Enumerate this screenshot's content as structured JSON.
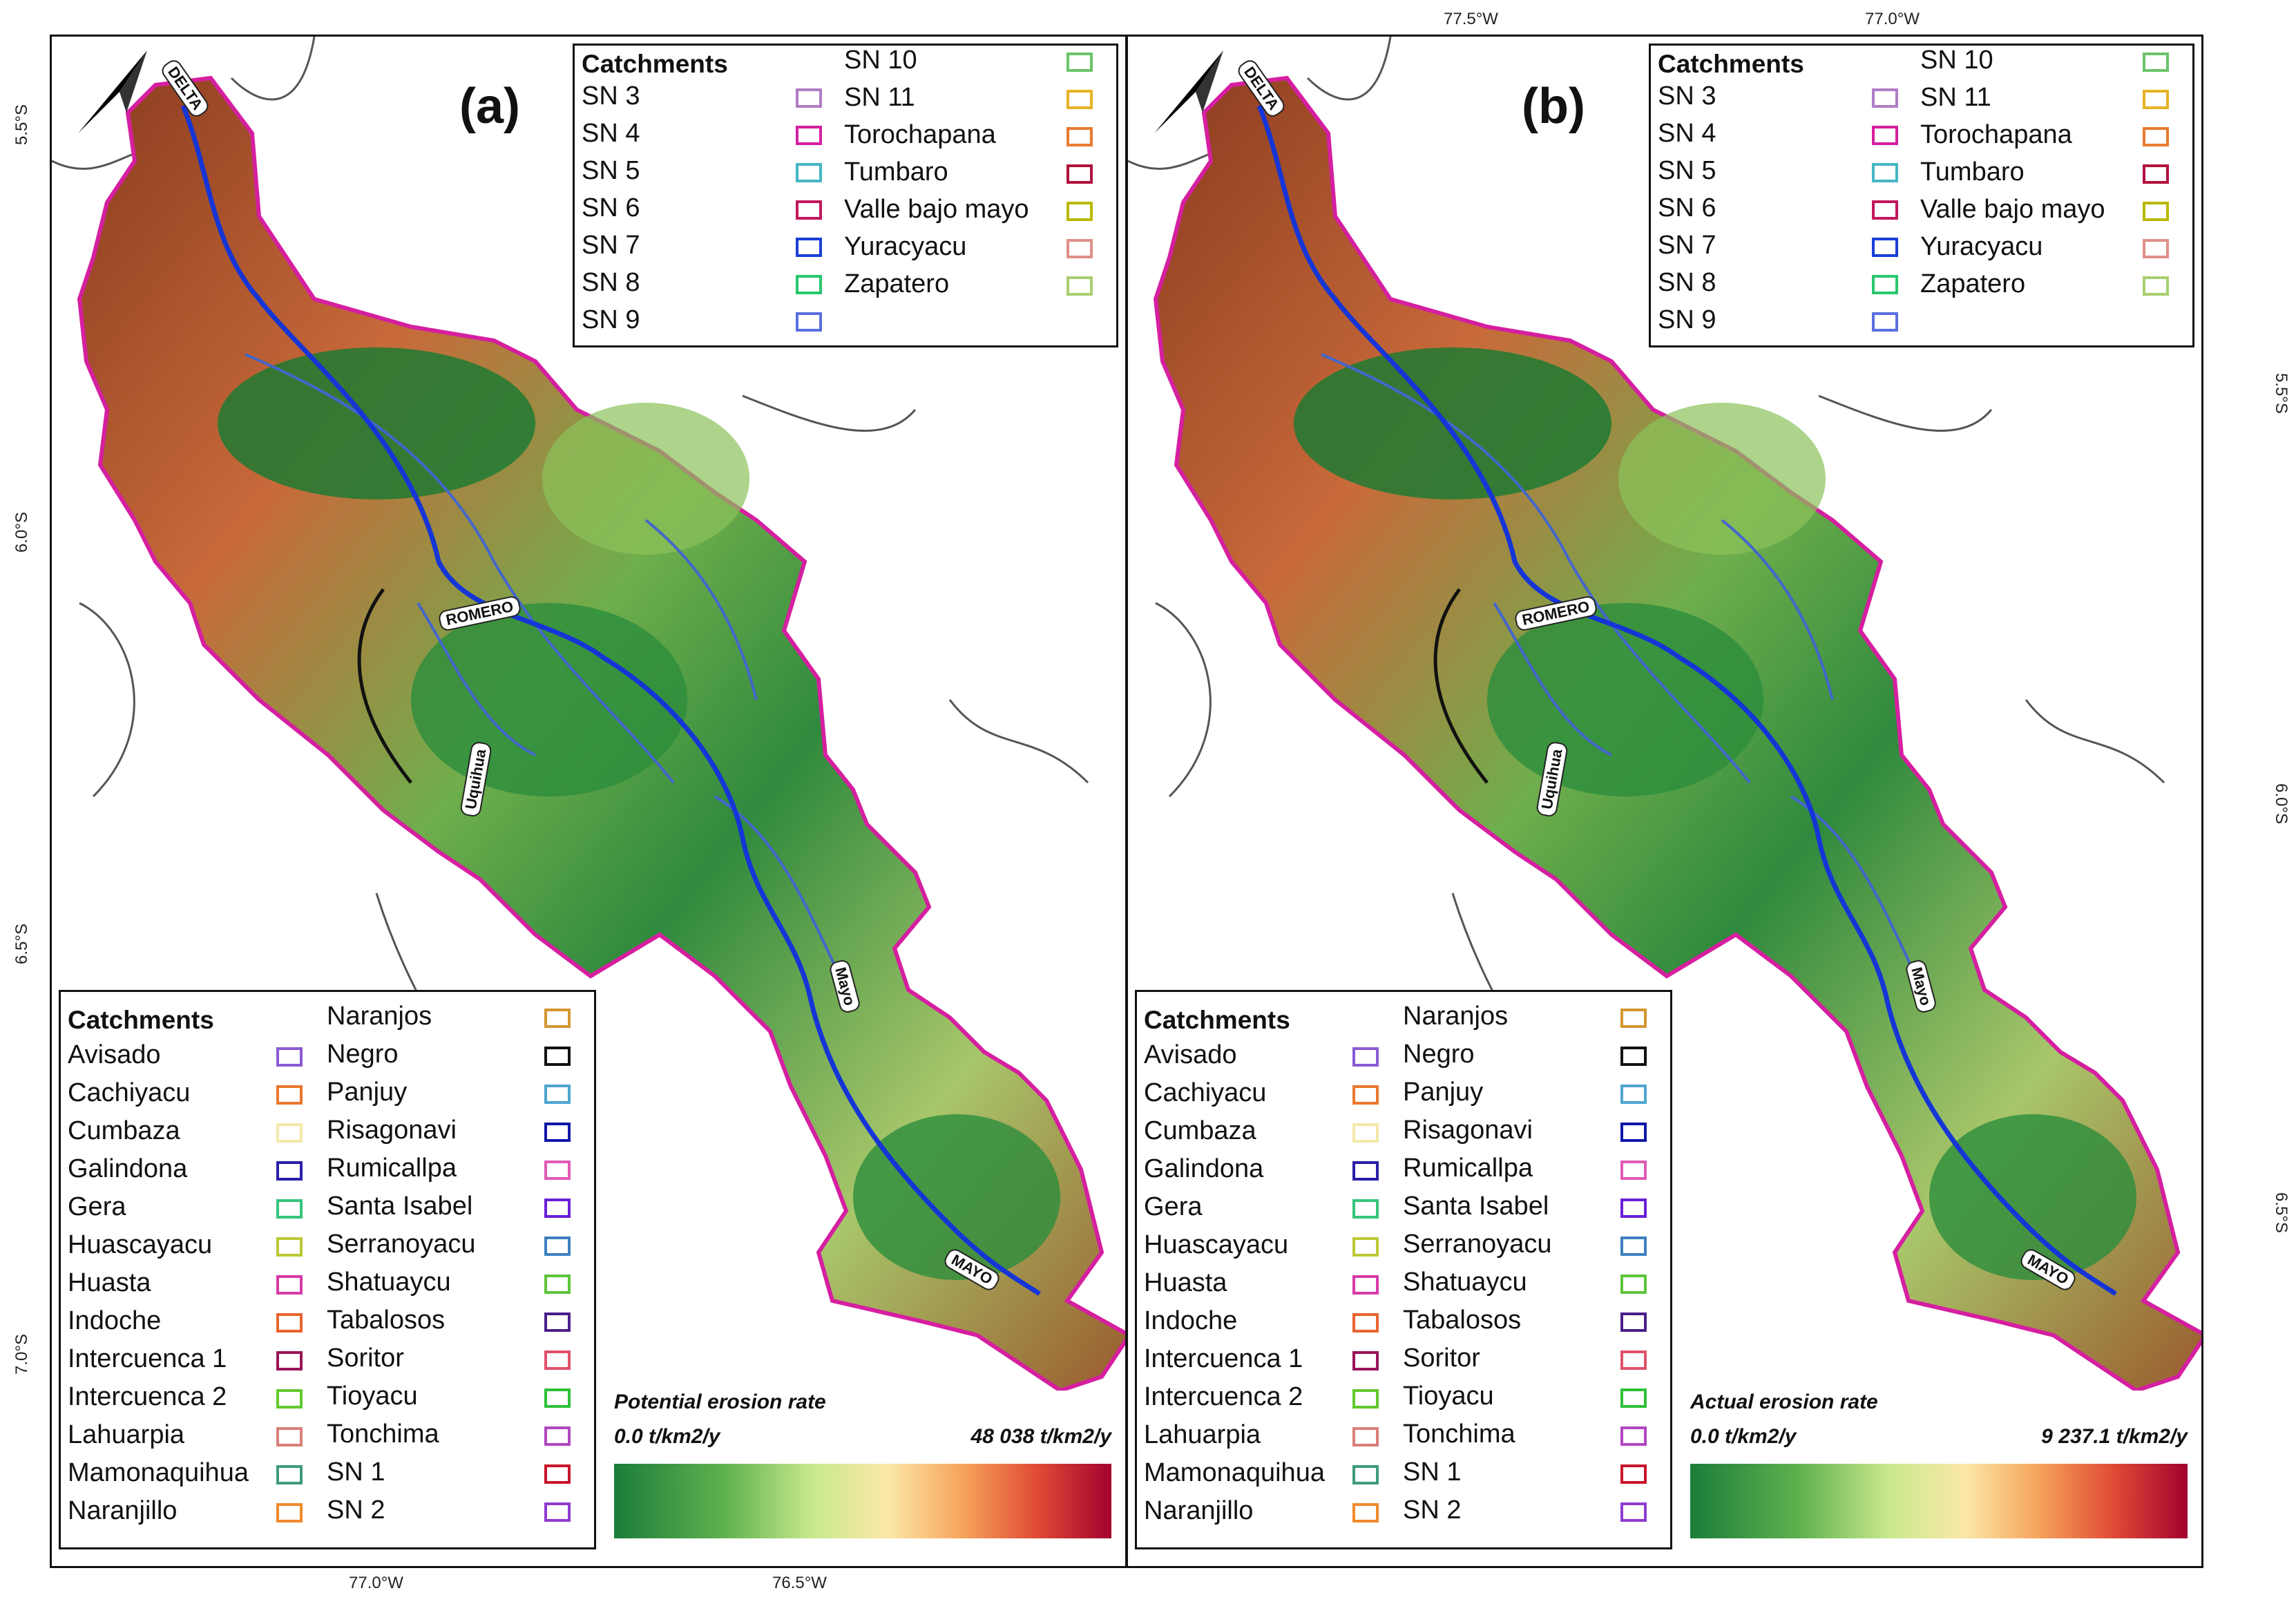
{
  "panels": [
    {
      "letter": "(a)",
      "legend_top": {
        "title": "Catchments",
        "col1": [
          "SN 3",
          "SN 4",
          "SN 5",
          "SN 6",
          "SN 7",
          "SN 8",
          "SN 9"
        ],
        "col2": [
          "SN 10",
          "SN 11",
          "Torochapana",
          "Tumbaro",
          "Valle bajo mayo",
          "Yuracyacu",
          "Zapatero"
        ],
        "col1_colors": [
          "#b07cc6",
          "#d51fa0",
          "#46b6c4",
          "#c2185b",
          "#1a3fd6",
          "#28c76f",
          "#5a6fe0"
        ],
        "col2_colors": [
          "#6ac46a",
          "#e5b324",
          "#e77b2f",
          "#b0123e",
          "#b9b900",
          "#e08f8a",
          "#a8cf6f"
        ]
      },
      "legend_bottom": {
        "title": "Catchments",
        "col1": [
          "Avisado",
          "Cachiyacu",
          "Cumbaza",
          "Galindona",
          "Gera",
          "Huascayacu",
          "Huasta",
          "Indoche",
          "Intercuenca 1",
          "Intercuenca 2",
          "Lahuarpia",
          "Mamonaquihua",
          "Naranjillo"
        ],
        "col2": [
          "Naranjos",
          "Negro",
          "Panjuy",
          "Risagonavi",
          "Rumicallpa",
          "Santa Isabel",
          "Serranoyacu",
          "Shatuaycu",
          "Tabalosos",
          "Soritor",
          "Tioyacu",
          "Tonchima",
          "SN 1",
          "SN 2"
        ],
        "col1_colors": [
          "#8a5bd6",
          "#e9782d",
          "#f3e9a8",
          "#2a1ea8",
          "#34c47c",
          "#bcc834",
          "#d83aa8",
          "#e8642e",
          "#9a1458",
          "#62c92c",
          "#d97f7a",
          "#3f9a7a",
          "#f08a2c"
        ],
        "col2_colors": [
          "#d49531",
          "#111111",
          "#4ea5cf",
          "#1017a8",
          "#e05ab5",
          "#6a1fd6",
          "#3d80c0",
          "#5dc53a",
          "#4b1f8a",
          "#e0506a",
          "#2fbf3a",
          "#b047c0",
          "#c8152c",
          "#8e3cd0"
        ]
      },
      "ramp": {
        "title": "Potential erosion rate",
        "min": "0.0 t/km2/y",
        "max": "48 038 t/km2/y"
      },
      "ticks_left": [
        "5.5°S",
        "6.0°S",
        "6.5°S",
        "7.0°S"
      ],
      "ticks_bottom": [
        "77.0°W",
        "76.5°W"
      ],
      "river_labels": [
        "DELTA",
        "ROMERO",
        "Uquihua",
        "Mayo",
        "MAYO"
      ]
    },
    {
      "letter": "(b)",
      "legend_top": {
        "title": "Catchments",
        "col1": [
          "SN 3",
          "SN 4",
          "SN 5",
          "SN 6",
          "SN 7",
          "SN 8",
          "SN 9"
        ],
        "col2": [
          "SN 10",
          "SN 11",
          "Torochapana",
          "Tumbaro",
          "Valle bajo mayo",
          "Yuracyacu",
          "Zapatero"
        ],
        "col1_colors": [
          "#b07cc6",
          "#d51fa0",
          "#46b6c4",
          "#c2185b",
          "#1a3fd6",
          "#28c76f",
          "#5a6fe0"
        ],
        "col2_colors": [
          "#6ac46a",
          "#e5b324",
          "#e77b2f",
          "#b0123e",
          "#b9b900",
          "#e08f8a",
          "#a8cf6f"
        ]
      },
      "legend_bottom": {
        "title": "Catchments",
        "col1": [
          "Avisado",
          "Cachiyacu",
          "Cumbaza",
          "Galindona",
          "Gera",
          "Huascayacu",
          "Huasta",
          "Indoche",
          "Intercuenca 1",
          "Intercuenca 2",
          "Lahuarpia",
          "Mamonaquihua",
          "Naranjillo"
        ],
        "col2": [
          "Naranjos",
          "Negro",
          "Panjuy",
          "Risagonavi",
          "Rumicallpa",
          "Santa Isabel",
          "Serranoyacu",
          "Shatuaycu",
          "Tabalosos",
          "Soritor",
          "Tioyacu",
          "Tonchima",
          "SN 1",
          "SN 2"
        ],
        "col1_colors": [
          "#8a5bd6",
          "#e9782d",
          "#f3e9a8",
          "#2a1ea8",
          "#34c47c",
          "#bcc834",
          "#d83aa8",
          "#e8642e",
          "#9a1458",
          "#62c92c",
          "#d97f7a",
          "#3f9a7a",
          "#f08a2c"
        ],
        "col2_colors": [
          "#d49531",
          "#111111",
          "#4ea5cf",
          "#1017a8",
          "#e05ab5",
          "#6a1fd6",
          "#3d80c0",
          "#5dc53a",
          "#4b1f8a",
          "#e0506a",
          "#2fbf3a",
          "#b047c0",
          "#c8152c",
          "#8e3cd0"
        ]
      },
      "ramp": {
        "title": "Actual erosion rate",
        "min": "0.0 t/km2/y",
        "max": "9 237.1 t/km2/y"
      },
      "ticks_top": [
        "77.5°W",
        "77.0°W"
      ],
      "ticks_right": [
        "5.5°S",
        "6.0°S",
        "6.5°S"
      ],
      "river_labels": [
        "DELTA",
        "ROMERO",
        "Uquihua",
        "Mayo",
        "MAYO"
      ]
    }
  ],
  "colors": {
    "low": "#1b7d3a",
    "mid": "#c9e98c",
    "high": "#a3012e",
    "frame": "#111111"
  }
}
